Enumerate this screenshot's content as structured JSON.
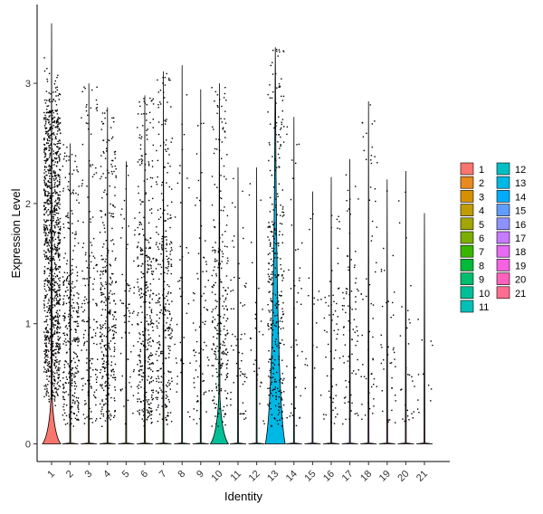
{
  "chart_data": {
    "type": "violin",
    "xlabel": "Identity",
    "ylabel": "Expression Level",
    "ylim": [
      -0.15,
      3.65
    ],
    "yticks": [
      0,
      1,
      2,
      3
    ],
    "grid": false,
    "legend_position": "right",
    "jitter_points": true,
    "categories": [
      "1",
      "2",
      "3",
      "4",
      "5",
      "6",
      "7",
      "8",
      "9",
      "10",
      "11",
      "12",
      "13",
      "14",
      "15",
      "16",
      "17",
      "18",
      "19",
      "20",
      "21"
    ],
    "colors": [
      "#F8766D",
      "#E98A1E",
      "#D79100",
      "#BF9C00",
      "#A3A500",
      "#7CAE00",
      "#39B600",
      "#00BA38",
      "#00BE6C",
      "#00BF96",
      "#00C0B8",
      "#00BFC4",
      "#00B8E5",
      "#00ADFA",
      "#619CFF",
      "#8F91FF",
      "#C77CFF",
      "#E76BF3",
      "#F563E3",
      "#FF62BC",
      "#FF6C91"
    ],
    "series": [
      {
        "name": "1",
        "max": 3.5,
        "point_count": 1100,
        "violin_peak_at_zero": 0.35
      },
      {
        "name": "2",
        "max": 2.5,
        "point_count": 330,
        "violin_peak_at_zero": 0.02
      },
      {
        "name": "3",
        "max": 3.0,
        "point_count": 170,
        "violin_peak_at_zero": 0.02
      },
      {
        "name": "4",
        "max": 2.8,
        "point_count": 330,
        "violin_peak_at_zero": 0.02
      },
      {
        "name": "5",
        "max": 2.35,
        "point_count": 70,
        "violin_peak_at_zero": 0.02
      },
      {
        "name": "6",
        "max": 2.9,
        "point_count": 360,
        "violin_peak_at_zero": 0.02
      },
      {
        "name": "7",
        "max": 3.1,
        "point_count": 300,
        "violin_peak_at_zero": 0.02
      },
      {
        "name": "8",
        "max": 3.15,
        "point_count": 40,
        "violin_peak_at_zero": 0.02
      },
      {
        "name": "9",
        "max": 2.95,
        "point_count": 80,
        "violin_peak_at_zero": 0.02
      },
      {
        "name": "10",
        "max": 3.0,
        "point_count": 260,
        "violin_peak_at_zero": 0.35
      },
      {
        "name": "11",
        "max": 2.3,
        "point_count": 60,
        "violin_peak_at_zero": 0.02
      },
      {
        "name": "12",
        "max": 2.3,
        "point_count": 30,
        "violin_peak_at_zero": 0.02
      },
      {
        "name": "13",
        "max": 3.3,
        "point_count": 330,
        "violin_peak_at_zero": 0.45
      },
      {
        "name": "14",
        "max": 2.72,
        "point_count": 45,
        "violin_peak_at_zero": 0.02
      },
      {
        "name": "15",
        "max": 2.1,
        "point_count": 20,
        "violin_peak_at_zero": 0.02
      },
      {
        "name": "16",
        "max": 2.22,
        "point_count": 60,
        "violin_peak_at_zero": 0.02
      },
      {
        "name": "17",
        "max": 2.37,
        "point_count": 85,
        "violin_peak_at_zero": 0.02
      },
      {
        "name": "18",
        "max": 2.85,
        "point_count": 60,
        "violin_peak_at_zero": 0.02
      },
      {
        "name": "19",
        "max": 2.2,
        "point_count": 40,
        "violin_peak_at_zero": 0.02
      },
      {
        "name": "20",
        "max": 2.27,
        "point_count": 30,
        "violin_peak_at_zero": 0.02
      },
      {
        "name": "21",
        "max": 1.92,
        "point_count": 12,
        "violin_peak_at_zero": 0.02
      }
    ]
  }
}
